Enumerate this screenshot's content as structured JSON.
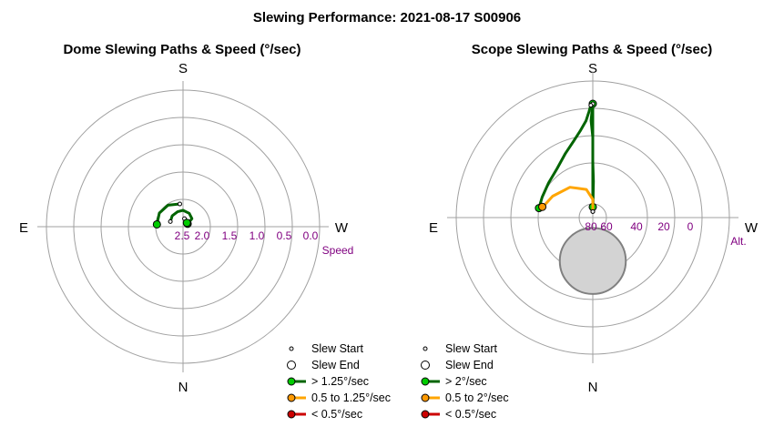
{
  "figure": {
    "title": "Slewing Performance: 2021-08-17 S00906"
  },
  "chart_data": [
    {
      "type": "polar-path",
      "title": "Dome Slewing Paths & Speed (°/sec)",
      "compass": {
        "top": "S",
        "left": "E",
        "right": "W",
        "bottom": "N"
      },
      "radial_axis": {
        "label": "Speed",
        "ticks": [
          "2.5",
          "2.0",
          "1.5",
          "1.0",
          "0.5",
          "0.0"
        ],
        "ring_values": [
          3.0,
          2.5,
          2.0,
          1.5,
          1.0,
          0.5,
          0.0
        ],
        "direction": "inward"
      },
      "background_disc": null,
      "legend": [
        {
          "label": "Slew Start",
          "marker": "small-circle"
        },
        {
          "label": "Slew End",
          "marker": "large-circle"
        },
        {
          "label": "> 1.25°/sec",
          "color": "#00cc00",
          "line": "#006400"
        },
        {
          "label": "0.5 to 1.25°/sec",
          "color": "#ff9900",
          "line": "#ffa500"
        },
        {
          "label": "< 0.5°/sec",
          "color": "#cc0000",
          "line": "#cc0000"
        }
      ],
      "series": [
        {
          "speed_class": "> 1.25°/sec",
          "path_polar": [
            [
              112,
              2.75
            ],
            [
              135,
              2.72
            ],
            [
              160,
              2.71
            ],
            [
              180,
              2.7
            ],
            [
              205,
              2.73
            ],
            [
              228,
              2.78
            ],
            [
              238,
              2.9
            ]
          ],
          "start": [
            112,
            2.75
          ],
          "end": [
            238,
            2.9
          ]
        },
        {
          "speed_class": "> 1.25°/sec",
          "path_polar": [
            [
              172,
              2.58
            ],
            [
              145,
              2.52
            ],
            [
              120,
              2.5
            ],
            [
              95,
              2.52
            ]
          ],
          "start": [
            172,
            2.58
          ],
          "end": [
            95,
            2.52
          ]
        },
        {
          "speed_class": "> 1.25°/sec",
          "path_polar": [
            [
              190,
              2.85
            ],
            [
              205,
              2.87
            ],
            [
              225,
              2.9
            ]
          ],
          "start": [
            190,
            2.85
          ],
          "end": [
            225,
            2.9
          ]
        }
      ]
    },
    {
      "type": "polar-path",
      "title": "Scope Slewing Paths & Speed (°/sec)",
      "compass": {
        "top": "S",
        "left": "E",
        "right": "W",
        "bottom": "N"
      },
      "radial_axis": {
        "label": "Alt.",
        "ticks": [
          "80",
          "60",
          "40",
          "20",
          "0"
        ],
        "ring_values": [
          90,
          80,
          60,
          40,
          20,
          0
        ],
        "direction": "inward"
      },
      "background_disc": {
        "center_altitude": 62,
        "center_azimuth": 0,
        "radius_deg": 15,
        "color": "#d3d3d3"
      },
      "legend": [
        {
          "label": "Slew Start",
          "marker": "small-circle"
        },
        {
          "label": "Slew End",
          "marker": "large-circle"
        },
        {
          "label": "> 2°/sec",
          "color": "#00cc00",
          "line": "#006400"
        },
        {
          "label": "0.5 to 2°/sec",
          "color": "#ff9900",
          "line": "#ffa500"
        },
        {
          "label": "< 0.5°/sec",
          "color": "#cc0000",
          "line": "#cc0000"
        }
      ],
      "series": [
        {
          "speed_class": "> 2°/sec",
          "path_altaz": [
            [
              86,
              180
            ],
            [
              84,
              180
            ],
            [
              80,
              180
            ],
            [
              73,
              180
            ],
            [
              66,
              180
            ],
            [
              58,
              180
            ],
            [
              47,
              180
            ],
            [
              37,
              180
            ],
            [
              26,
              179
            ],
            [
              15,
              180
            ]
          ],
          "start": [
            86,
            180
          ],
          "end": [
            15,
            180
          ]
        },
        {
          "speed_class": "> 2°/sec",
          "path_altaz": [
            [
              15,
              180
            ],
            [
              22,
              180
            ],
            [
              30,
              180
            ],
            [
              40,
              180
            ],
            [
              53,
              180
            ],
            [
              66,
              181
            ],
            [
              75,
              181
            ],
            [
              80,
              181
            ],
            [
              83,
              180
            ]
          ],
          "start": [
            15,
            180
          ],
          "end": [
            83,
            180
          ]
        },
        {
          "speed_class": "> 2°/sec",
          "path_altaz": [
            [
              16,
              179
            ],
            [
              20,
              178
            ],
            [
              26,
              176
            ],
            [
              32,
              172
            ],
            [
              38,
              166
            ],
            [
              44,
              157
            ],
            [
              50,
              144
            ],
            [
              53,
              128
            ],
            [
              54,
              112
            ],
            [
              54,
              100
            ]
          ],
          "start": [
            16,
            179
          ],
          "end": [
            54,
            100
          ]
        },
        {
          "speed_class": "0.5 to 2°/sec",
          "path_altaz": [
            [
              86,
              180
            ],
            [
              78,
              180
            ],
            [
              71,
              167
            ],
            [
              65,
              143
            ],
            [
              60,
              118
            ],
            [
              57,
              104
            ],
            [
              56,
              102
            ]
          ],
          "start": [
            86,
            180
          ],
          "end": [
            56,
            102
          ]
        }
      ]
    }
  ]
}
